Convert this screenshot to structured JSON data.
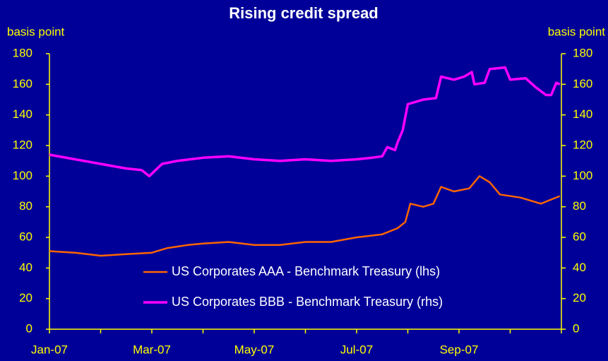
{
  "chart_data": {
    "type": "line",
    "title": "Rising credit spread",
    "ylabel": "basis point",
    "y2label": "basis point",
    "xlim": [
      0,
      10
    ],
    "xticks": [
      {
        "value": 0,
        "label": "Jan-07"
      },
      {
        "value": 1,
        "label": null
      },
      {
        "value": 2,
        "label": "Mar-07"
      },
      {
        "value": 3,
        "label": null
      },
      {
        "value": 4,
        "label": "May-07"
      },
      {
        "value": 5,
        "label": null
      },
      {
        "value": 6,
        "label": "Jul-07"
      },
      {
        "value": 7,
        "label": null
      },
      {
        "value": 8,
        "label": "Sep-07"
      },
      {
        "value": 9,
        "label": null
      },
      {
        "value": 10,
        "label": null
      }
    ],
    "ylim": [
      0,
      180
    ],
    "yticks": [
      0,
      20,
      40,
      60,
      80,
      100,
      120,
      140,
      160,
      180
    ],
    "y2lim": [
      0,
      180
    ],
    "y2ticks": [
      0,
      20,
      40,
      60,
      80,
      100,
      120,
      140,
      160,
      180
    ],
    "series": [
      {
        "name": "US Corporates AAA - Benchmark Treasury (lhs)",
        "color": "#ff6600",
        "axis": "y",
        "x": [
          0,
          0.5,
          1,
          1.5,
          2,
          2.3,
          2.7,
          3,
          3.5,
          4,
          4.5,
          5,
          5.5,
          6,
          6.5,
          6.8,
          6.95,
          7.05,
          7.3,
          7.5,
          7.65,
          7.9,
          8.2,
          8.4,
          8.6,
          8.8,
          9.2,
          9.6,
          9.97
        ],
        "values": [
          51,
          50,
          48,
          49,
          50,
          53,
          55,
          56,
          57,
          55,
          55,
          57,
          57,
          60,
          62,
          66,
          70,
          82,
          80,
          82,
          93,
          90,
          92,
          100,
          96,
          88,
          86,
          82,
          87
        ]
      },
      {
        "name": "US Corporates BBB - Benchmark Treasury (rhs)",
        "color": "#ff00ff",
        "axis": "y2",
        "x": [
          0,
          0.5,
          1,
          1.5,
          1.8,
          1.95,
          2.2,
          2.5,
          3,
          3.5,
          4,
          4.5,
          5,
          5.5,
          6,
          6.3,
          6.5,
          6.6,
          6.75,
          6.8,
          6.9,
          7.0,
          7.3,
          7.55,
          7.65,
          7.9,
          8.1,
          8.25,
          8.3,
          8.5,
          8.6,
          8.9,
          9.0,
          9.3,
          9.5,
          9.7,
          9.8,
          9.9,
          9.97
        ],
        "values": [
          114,
          111,
          108,
          105,
          104,
          100,
          108,
          110,
          112,
          113,
          111,
          110,
          111,
          110,
          111,
          112,
          113,
          119,
          117,
          122,
          130,
          147,
          150,
          151,
          165,
          163,
          165,
          168,
          160,
          161,
          170,
          171,
          163,
          164,
          158,
          153,
          153,
          161,
          160
        ]
      }
    ]
  }
}
